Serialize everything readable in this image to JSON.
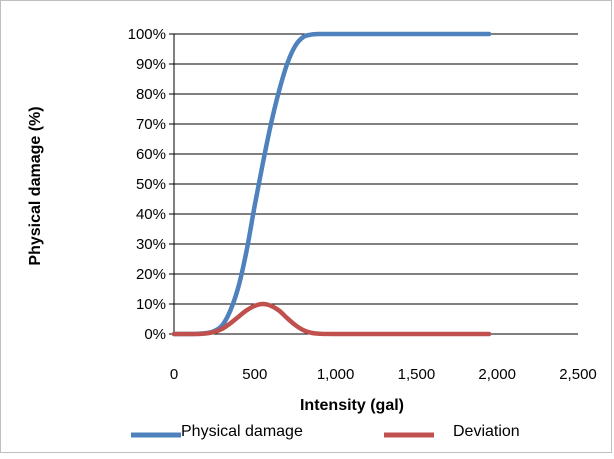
{
  "chart_data": {
    "type": "line",
    "title": "",
    "xlabel": "Intensity (gal)",
    "ylabel": "Physical damage (%)",
    "xlim": [
      0,
      2500
    ],
    "ylim": [
      0,
      100
    ],
    "x_ticks": [
      0,
      500,
      1000,
      1500,
      2000,
      2500
    ],
    "x_tick_labels": [
      "0",
      "500",
      "1,000",
      "1,500",
      "2,000",
      "2,500"
    ],
    "y_ticks": [
      0,
      10,
      20,
      30,
      40,
      50,
      60,
      70,
      80,
      90,
      100
    ],
    "y_tick_labels": [
      "0%",
      "10%",
      "20%",
      "30%",
      "40%",
      "50%",
      "60%",
      "70%",
      "80%",
      "90%",
      "100%"
    ],
    "grid": "horizontal",
    "legend_position": "bottom",
    "series": [
      {
        "name": "Physical damage",
        "color": "#4f81bd",
        "x": [
          0,
          100,
          200,
          250,
          300,
          350,
          400,
          450,
          500,
          550,
          600,
          650,
          700,
          750,
          800,
          850,
          900,
          1000,
          1200,
          1500,
          1800,
          1950
        ],
        "y": [
          0,
          0,
          0.3,
          1,
          3,
          8,
          16,
          28,
          43,
          57,
          70,
          81,
          90,
          96,
          99,
          99.8,
          100,
          100,
          100,
          100,
          100,
          100
        ]
      },
      {
        "name": "Deviation",
        "color": "#c0504d",
        "x": [
          0,
          150,
          200,
          250,
          300,
          350,
          400,
          450,
          500,
          550,
          600,
          650,
          700,
          750,
          800,
          850,
          900,
          1000,
          1500,
          1950
        ],
        "y": [
          0,
          0,
          0.2,
          0.7,
          1.8,
          3.6,
          5.8,
          7.9,
          9.4,
          10,
          9.4,
          7.8,
          5.3,
          3.0,
          1.3,
          0.4,
          0.1,
          0,
          0,
          0
        ]
      }
    ]
  }
}
